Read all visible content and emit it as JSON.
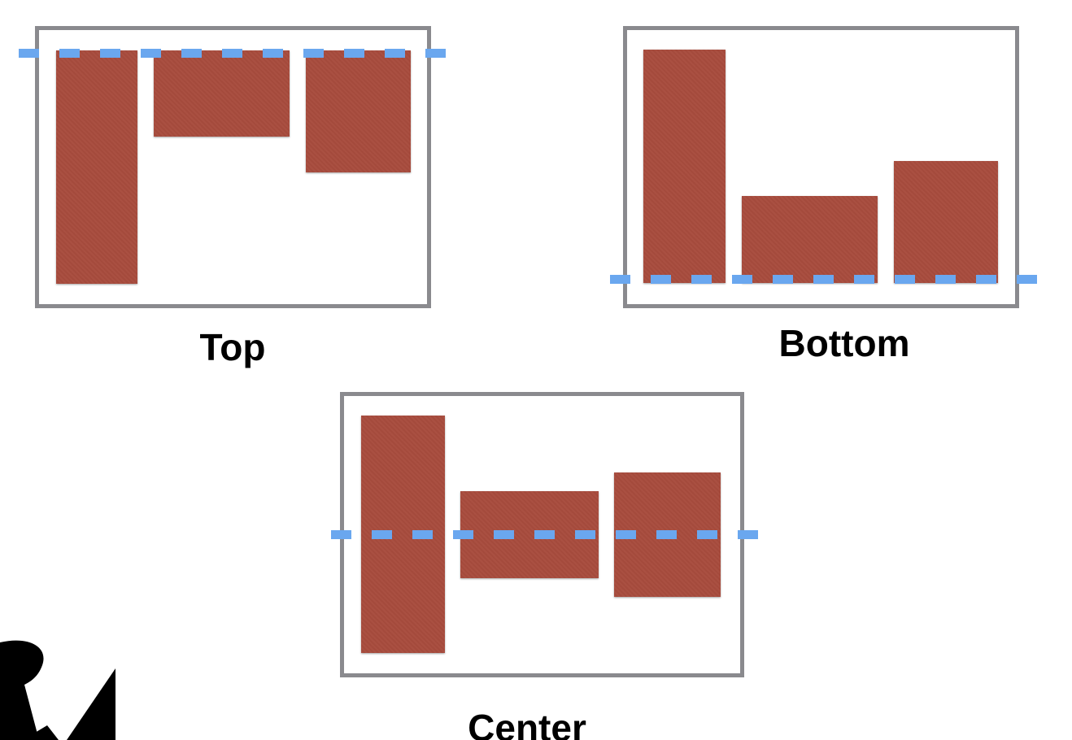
{
  "labels": {
    "top": "Top",
    "bottom": "Bottom",
    "center": "Center"
  },
  "colors": {
    "block": "#a84c3d",
    "frame": "#8a8a8e",
    "guide": "#6aa7ef",
    "logo": "#000000"
  },
  "icons": {
    "logo": "rw-logo-icon"
  }
}
